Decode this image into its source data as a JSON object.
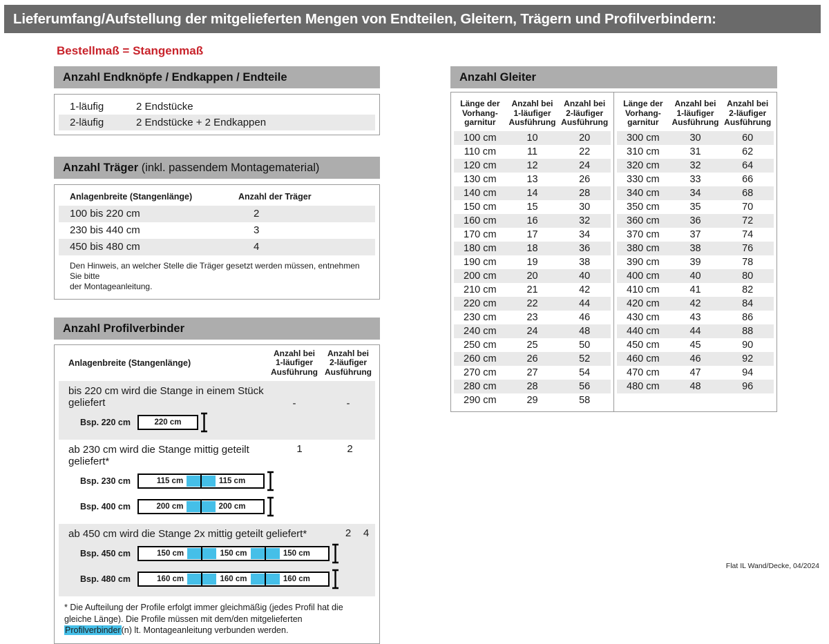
{
  "page": {
    "title": "Lieferumfang/Aufstellung der mitgelieferten Mengen von Endteilen, Gleitern, Trägern und Profilverbindern:",
    "subtitle": "Bestellmaß = Stangenmaß",
    "footer": "Flat IL Wand/Decke, 04/2024"
  },
  "colors": {
    "title_bar_gray": "#6a6a6a",
    "section_bar_gray": "#adadad",
    "row_stripe_gray": "#e9e9e9",
    "accent_red": "#c8232b",
    "connector_blue": "#45bfe8"
  },
  "endteile": {
    "header": "Anzahl Endknöpfe / Endkappen / Endteile",
    "rows": [
      {
        "label": "1-läufig",
        "value": "2 Endstücke"
      },
      {
        "label": "2-läufig",
        "value": "2 Endstücke + 2 Endkappen"
      }
    ]
  },
  "traeger": {
    "header_bold": "Anzahl Träger",
    "header_rest": " (inkl. passendem Montagematerial)",
    "col_width": "Anlagenbreite (Stangenlänge)",
    "col_count": "Anzahl der Träger",
    "rows": [
      {
        "range": "100 bis 220 cm",
        "count": "2"
      },
      {
        "range": "230 bis 440 cm",
        "count": "3"
      },
      {
        "range": "450 bis 480 cm",
        "count": "4"
      }
    ],
    "note": "Den Hinweis, an welcher Stelle die Träger gesetzt werden müssen, entnehmen Sie bitte\nder Montageanleitung."
  },
  "profilverbinder": {
    "header": "Anzahl Profilverbinder",
    "col_width": "Anlagenbreite (Stangenlänge)",
    "col_one": "Anzahl bei\n1-läufiger\nAusführung",
    "col_two": "Anzahl bei\n2-läufiger\nAusführung",
    "rows": [
      {
        "text": "bis 220 cm wird die Stange in einem Stück geliefert",
        "one": "-",
        "two": "-",
        "examples": [
          {
            "label": "Bsp. 220 cm",
            "segments": [
              "220 cm"
            ]
          }
        ]
      },
      {
        "text": "ab 230 cm wird die Stange mittig geteilt geliefert*",
        "one": "1",
        "two": "2",
        "examples": [
          {
            "label": "Bsp. 230 cm",
            "segments": [
              "115 cm",
              "115 cm"
            ]
          },
          {
            "label": "Bsp. 400 cm",
            "segments": [
              "200 cm",
              "200 cm"
            ]
          }
        ]
      },
      {
        "text": "ab 450 cm wird die Stange 2x mittig geteilt geliefert*",
        "one": "2",
        "two": "4",
        "examples": [
          {
            "label": "Bsp. 450 cm",
            "segments": [
              "150 cm",
              "150 cm",
              "150 cm"
            ]
          },
          {
            "label": "Bsp. 480 cm",
            "segments": [
              "160 cm",
              "160 cm",
              "160 cm"
            ]
          }
        ]
      }
    ],
    "footnote_pre": "* Die Aufteilung der Profile erfolgt immer gleichmäßig (jedes Profil hat die gleiche Länge). Die Profile müssen mit dem/den mitgelieferten ",
    "footnote_highlight": "Profilverbinder",
    "footnote_post": "(n) lt. Montageanleitung verbunden werden."
  },
  "gleiter": {
    "header": "Anzahl Gleiter",
    "col_length": "Länge der\nVorhang-\ngarnitur",
    "col_one": "Anzahl bei\n1-läufiger\nAusführung",
    "col_two": "Anzahl bei\n2-läufiger\nAusführung",
    "left_rows": [
      [
        "100 cm",
        "10",
        "20"
      ],
      [
        "110 cm",
        "11",
        "22"
      ],
      [
        "120 cm",
        "12",
        "24"
      ],
      [
        "130 cm",
        "13",
        "26"
      ],
      [
        "140 cm",
        "14",
        "28"
      ],
      [
        "150 cm",
        "15",
        "30"
      ],
      [
        "160 cm",
        "16",
        "32"
      ],
      [
        "170 cm",
        "17",
        "34"
      ],
      [
        "180 cm",
        "18",
        "36"
      ],
      [
        "190 cm",
        "19",
        "38"
      ],
      [
        "200 cm",
        "20",
        "40"
      ],
      [
        "210 cm",
        "21",
        "42"
      ],
      [
        "220 cm",
        "22",
        "44"
      ],
      [
        "230 cm",
        "23",
        "46"
      ],
      [
        "240 cm",
        "24",
        "48"
      ],
      [
        "250 cm",
        "25",
        "50"
      ],
      [
        "260 cm",
        "26",
        "52"
      ],
      [
        "270 cm",
        "27",
        "54"
      ],
      [
        "280 cm",
        "28",
        "56"
      ],
      [
        "290 cm",
        "29",
        "58"
      ]
    ],
    "right_rows": [
      [
        "300 cm",
        "30",
        "60"
      ],
      [
        "310 cm",
        "31",
        "62"
      ],
      [
        "320 cm",
        "32",
        "64"
      ],
      [
        "330 cm",
        "33",
        "66"
      ],
      [
        "340 cm",
        "34",
        "68"
      ],
      [
        "350 cm",
        "35",
        "70"
      ],
      [
        "360 cm",
        "36",
        "72"
      ],
      [
        "370 cm",
        "37",
        "74"
      ],
      [
        "380 cm",
        "38",
        "76"
      ],
      [
        "390 cm",
        "39",
        "78"
      ],
      [
        "400 cm",
        "40",
        "80"
      ],
      [
        "410 cm",
        "41",
        "82"
      ],
      [
        "420 cm",
        "42",
        "84"
      ],
      [
        "430 cm",
        "43",
        "86"
      ],
      [
        "440 cm",
        "44",
        "88"
      ],
      [
        "450 cm",
        "45",
        "90"
      ],
      [
        "460 cm",
        "46",
        "92"
      ],
      [
        "470 cm",
        "47",
        "94"
      ],
      [
        "480 cm",
        "48",
        "96"
      ]
    ]
  }
}
